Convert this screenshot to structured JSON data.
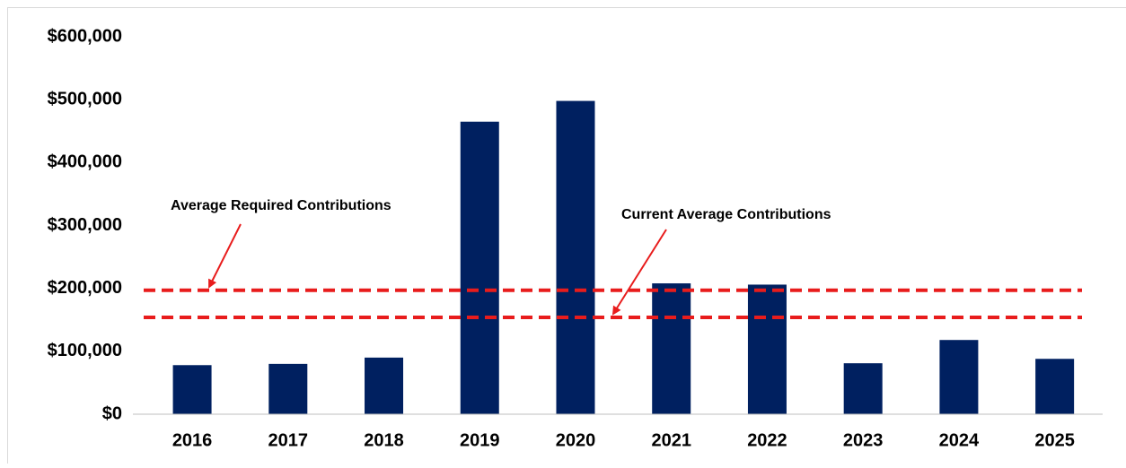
{
  "chart_data": {
    "type": "bar",
    "categories": [
      "2016",
      "2017",
      "2018",
      "2019",
      "2020",
      "2021",
      "2022",
      "2023",
      "2024",
      "2025"
    ],
    "values": [
      78000,
      80000,
      90000,
      465000,
      498000,
      208000,
      206000,
      81000,
      118000,
      88000
    ],
    "color": "#002060",
    "ylim": [
      0,
      600000
    ],
    "yticks": [
      {
        "value": 0,
        "label": "$0"
      },
      {
        "value": 100000,
        "label": "$100,000"
      },
      {
        "value": 200000,
        "label": "$200,000"
      },
      {
        "value": 300000,
        "label": "$300,000"
      },
      {
        "value": 400000,
        "label": "$400,000"
      },
      {
        "value": 500000,
        "label": "$500,000"
      },
      {
        "value": 600000,
        "label": "$600,000"
      }
    ],
    "grid": false,
    "reference_lines": [
      {
        "name": "Average Required Contributions",
        "value": 197000,
        "color": "#e81c1c"
      },
      {
        "name": "Current Average Contributions",
        "value": 154000,
        "color": "#e81c1c"
      }
    ]
  }
}
